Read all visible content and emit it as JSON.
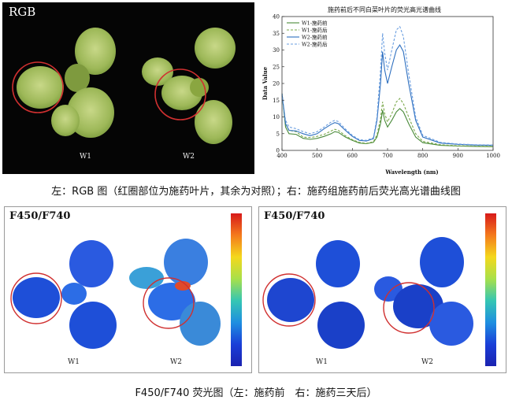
{
  "rgb_panel": {
    "title": "RGB",
    "labels": [
      "W1",
      "W2"
    ]
  },
  "chart_data": {
    "type": "line",
    "title": "施药前后不同白菜叶片的荧光高光谱曲线",
    "xlabel": "Wavelength (nm)",
    "ylabel": "Data Value",
    "xlim": [
      400,
      1000
    ],
    "ylim": [
      0,
      40
    ],
    "xticks": [
      400,
      500,
      600,
      700,
      800,
      900,
      1000
    ],
    "yticks": [
      0,
      5,
      10,
      15,
      20,
      25,
      30,
      35,
      40
    ],
    "legend_position": "top-left",
    "series": [
      {
        "name": "W1-施药前",
        "color": "#4a8a3a",
        "dash": false,
        "points": [
          [
            400,
            17
          ],
          [
            410,
            7
          ],
          [
            420,
            5
          ],
          [
            440,
            4.8
          ],
          [
            460,
            3.6
          ],
          [
            480,
            3.3
          ],
          [
            500,
            3.6
          ],
          [
            520,
            4.2
          ],
          [
            540,
            5
          ],
          [
            550,
            5.6
          ],
          [
            560,
            5.4
          ],
          [
            580,
            4
          ],
          [
            600,
            3
          ],
          [
            620,
            2.2
          ],
          [
            640,
            2
          ],
          [
            660,
            2.4
          ],
          [
            670,
            4
          ],
          [
            680,
            8
          ],
          [
            686,
            12
          ],
          [
            692,
            9
          ],
          [
            700,
            7
          ],
          [
            712,
            9
          ],
          [
            725,
            11.5
          ],
          [
            735,
            12.5
          ],
          [
            745,
            11.5
          ],
          [
            760,
            8
          ],
          [
            780,
            4
          ],
          [
            800,
            2.3
          ],
          [
            850,
            1.5
          ],
          [
            900,
            1.3
          ],
          [
            950,
            1.2
          ],
          [
            1000,
            1.1
          ]
        ]
      },
      {
        "name": "W1-施药后",
        "color": "#7aa84a",
        "dash": true,
        "points": [
          [
            400,
            17
          ],
          [
            410,
            8
          ],
          [
            420,
            6
          ],
          [
            440,
            5.6
          ],
          [
            460,
            4
          ],
          [
            480,
            3.8
          ],
          [
            500,
            4.2
          ],
          [
            520,
            4.8
          ],
          [
            540,
            5.8
          ],
          [
            550,
            6.3
          ],
          [
            560,
            6
          ],
          [
            580,
            4.4
          ],
          [
            600,
            3.2
          ],
          [
            620,
            2.4
          ],
          [
            640,
            2.1
          ],
          [
            660,
            2.6
          ],
          [
            670,
            4.6
          ],
          [
            680,
            9.5
          ],
          [
            686,
            14.5
          ],
          [
            692,
            11
          ],
          [
            700,
            8.5
          ],
          [
            712,
            11
          ],
          [
            725,
            14.5
          ],
          [
            735,
            15.5
          ],
          [
            745,
            14
          ],
          [
            760,
            10
          ],
          [
            780,
            5
          ],
          [
            800,
            2.7
          ],
          [
            850,
            1.7
          ],
          [
            900,
            1.4
          ],
          [
            950,
            1.3
          ],
          [
            1000,
            1.2
          ]
        ]
      },
      {
        "name": "W2-施药前",
        "color": "#2e6fbf",
        "dash": false,
        "points": [
          [
            400,
            17
          ],
          [
            410,
            8
          ],
          [
            420,
            6
          ],
          [
            440,
            5.8
          ],
          [
            460,
            5
          ],
          [
            480,
            4.4
          ],
          [
            500,
            5
          ],
          [
            520,
            6.5
          ],
          [
            540,
            7.8
          ],
          [
            550,
            8.3
          ],
          [
            560,
            8
          ],
          [
            580,
            6
          ],
          [
            600,
            4.2
          ],
          [
            620,
            3
          ],
          [
            640,
            2.8
          ],
          [
            660,
            3.5
          ],
          [
            670,
            9
          ],
          [
            680,
            20
          ],
          [
            686,
            29.5
          ],
          [
            692,
            24
          ],
          [
            700,
            20
          ],
          [
            712,
            25
          ],
          [
            725,
            30
          ],
          [
            735,
            31.5
          ],
          [
            745,
            29.5
          ],
          [
            760,
            20
          ],
          [
            780,
            9
          ],
          [
            800,
            4
          ],
          [
            850,
            2.2
          ],
          [
            900,
            1.8
          ],
          [
            950,
            1.6
          ],
          [
            1000,
            1.5
          ]
        ]
      },
      {
        "name": "W2-施药后",
        "color": "#6a9ee0",
        "dash": true,
        "points": [
          [
            400,
            17
          ],
          [
            410,
            9
          ],
          [
            420,
            7
          ],
          [
            440,
            6.5
          ],
          [
            460,
            5.6
          ],
          [
            480,
            5
          ],
          [
            500,
            5.6
          ],
          [
            520,
            7
          ],
          [
            540,
            8.5
          ],
          [
            550,
            9
          ],
          [
            560,
            8.6
          ],
          [
            580,
            6.4
          ],
          [
            600,
            4.5
          ],
          [
            620,
            3.2
          ],
          [
            640,
            3
          ],
          [
            660,
            3.8
          ],
          [
            670,
            10
          ],
          [
            680,
            24
          ],
          [
            686,
            35
          ],
          [
            692,
            29
          ],
          [
            700,
            24
          ],
          [
            712,
            30
          ],
          [
            725,
            36
          ],
          [
            735,
            37
          ],
          [
            745,
            34
          ],
          [
            760,
            23
          ],
          [
            780,
            10
          ],
          [
            800,
            4.5
          ],
          [
            850,
            2.4
          ],
          [
            900,
            1.9
          ],
          [
            950,
            1.7
          ],
          [
            1000,
            1.6
          ]
        ]
      }
    ]
  },
  "captions": {
    "top": "左：RGB 图（红圈部位为施药叶片，其余为对照）；右：施药组施药前后荧光高光谱曲线图",
    "bottom": "F450/F740 荧光图（左：施药前　右：施药三天后）"
  },
  "fluorescence": {
    "left": {
      "title": "F450/F740",
      "labels": [
        "W1",
        "W2"
      ]
    },
    "right": {
      "title": "F450/F740",
      "labels": [
        "W1",
        "W2"
      ]
    }
  },
  "colors": {
    "leaf_green": "#a8c060",
    "leaf_blue": "#1e4fd8",
    "circle": "#d03030"
  }
}
